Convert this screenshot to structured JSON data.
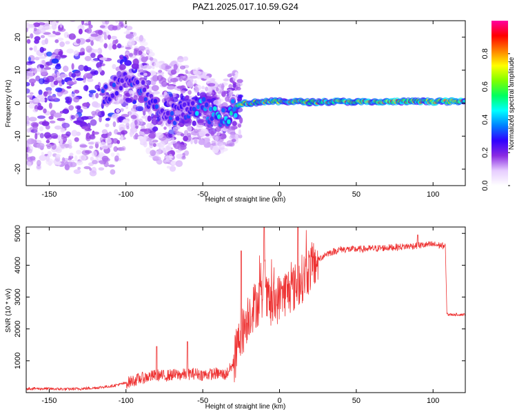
{
  "title": "PAZ1.2025.017.10.59.G24",
  "chart_data": [
    {
      "type": "heatmap",
      "title": "PAZ1.2025.017.10.59.G24",
      "xlabel": "Height of straight line (km)",
      "ylabel": "Frequency (Hz)",
      "xlim": [
        -165,
        121
      ],
      "ylim": [
        -25,
        25
      ],
      "xticks": [
        -150,
        -100,
        -50,
        0,
        50,
        100
      ],
      "yticks": [
        -20,
        -10,
        0,
        10,
        20
      ],
      "colorbar": {
        "label": "Normalized spectral amplitude",
        "range": [
          0.0,
          1.0
        ],
        "ticks": [
          0.0,
          0.2,
          0.4,
          0.6,
          0.8
        ],
        "tick_labels": [
          "0.0",
          "0.2",
          "0.4",
          "0.6",
          "0.8"
        ],
        "colors": [
          "#ffffff",
          "#e6ccff",
          "#8a2be2",
          "#3000ff",
          "#0080ff",
          "#00ffff",
          "#00ff60",
          "#80ff00",
          "#ffff00",
          "#ff8000",
          "#ff0000",
          "#ff00a0"
        ]
      },
      "ridge": {
        "x": [
          -165,
          -150,
          -130,
          -110,
          -100,
          -90,
          -80,
          -70,
          -60,
          -50,
          -45,
          -40,
          -35,
          -30,
          -25,
          -20,
          -10,
          0,
          10,
          20,
          40,
          60,
          80,
          100,
          121
        ],
        "frequency": [
          6,
          5,
          4,
          3,
          8,
          4,
          -2,
          -4,
          -1,
          -1,
          -3,
          -4,
          -4,
          -1,
          0,
          0,
          0.5,
          0.5,
          0.5,
          0.3,
          0.5,
          0.3,
          0.5,
          0.5,
          0.5
        ]
      }
    },
    {
      "type": "line",
      "xlabel": "Height of straight line (km)",
      "ylabel": "SNR (10 * v/v)",
      "xlim": [
        -165,
        121
      ],
      "ylim": [
        0,
        5200
      ],
      "xticks": [
        -150,
        -100,
        -50,
        0,
        50,
        100
      ],
      "yticks": [
        1000,
        2000,
        3000,
        4000,
        5000
      ],
      "line_color": "#ee3333",
      "series": [
        {
          "name": "SNR",
          "x": [
            -165,
            -150,
            -140,
            -130,
            -120,
            -110,
            -100,
            -95,
            -90,
            -85,
            -80,
            -75,
            -70,
            -65,
            -60,
            -55,
            -50,
            -45,
            -40,
            -35,
            -30,
            -27,
            -25,
            -22,
            -20,
            -15,
            -10,
            -5,
            0,
            5,
            10,
            15,
            20,
            25,
            30,
            40,
            50,
            60,
            70,
            80,
            90,
            100,
            108,
            109,
            110,
            115,
            121
          ],
          "values": [
            130,
            120,
            110,
            120,
            150,
            200,
            300,
            380,
            450,
            500,
            550,
            520,
            560,
            560,
            580,
            600,
            560,
            580,
            600,
            560,
            900,
            1500,
            1800,
            2200,
            2500,
            2800,
            3000,
            2700,
            3000,
            3200,
            3300,
            3600,
            3900,
            4150,
            4350,
            4500,
            4500,
            4520,
            4550,
            4580,
            4620,
            4650,
            4600,
            2500,
            2450,
            2450,
            2450
          ],
          "spikes": [
            {
              "x": -80,
              "value": 1450
            },
            {
              "x": -60,
              "value": 1600
            },
            {
              "x": -25,
              "value": 4450
            },
            {
              "x": -10,
              "value": 5200
            },
            {
              "x": 12,
              "value": 5200
            },
            {
              "x": 90,
              "value": 4950
            }
          ]
        }
      ]
    }
  ]
}
